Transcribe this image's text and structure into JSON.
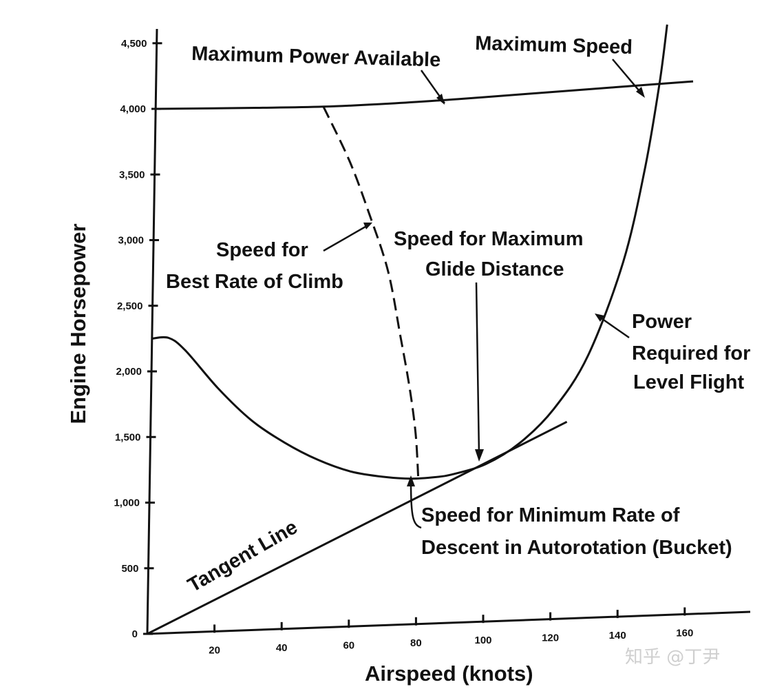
{
  "chart_data": {
    "type": "line",
    "title": "",
    "xlabel": "Airspeed (knots)",
    "ylabel": "Engine Horsepower",
    "xlim": [
      0,
      180
    ],
    "ylim": [
      0,
      4600
    ],
    "x_tick_labels": [
      "20",
      "40",
      "60",
      "80",
      "100",
      "120",
      "140",
      "160"
    ],
    "x_tick_values": [
      20,
      40,
      60,
      80,
      100,
      120,
      140,
      160
    ],
    "y_tick_labels": [
      "0",
      "500",
      "1,000",
      "1,500",
      "2,000",
      "2,500",
      "3,000",
      "3,500",
      "4,000",
      "4,500"
    ],
    "y_tick_values": [
      0,
      500,
      1000,
      1500,
      2000,
      2500,
      3000,
      3500,
      4000,
      4500
    ],
    "series": [
      {
        "name": "Maximum Power Available",
        "style": "solid",
        "x": [
          0,
          30,
          50,
          70,
          90,
          110,
          130,
          150,
          160
        ],
        "y": [
          4000,
          3980,
          3970,
          3975,
          3990,
          4010,
          4030,
          4050,
          4060
        ]
      },
      {
        "name": "Power Required for Level Flight",
        "style": "solid",
        "x": [
          0,
          5,
          10,
          20,
          30,
          40,
          50,
          60,
          70,
          78,
          85,
          90,
          100,
          110,
          120,
          130,
          140,
          146,
          150,
          152
        ],
        "y": [
          2250,
          2250,
          2150,
          1850,
          1600,
          1420,
          1280,
          1180,
          1130,
          1110,
          1115,
          1130,
          1200,
          1350,
          1600,
          2000,
          2700,
          3400,
          4050,
          4500
        ]
      },
      {
        "name": "Speed for Best Rate of Climb",
        "style": "dashed",
        "x": [
          50,
          58,
          64,
          70,
          74,
          77,
          79,
          80
        ],
        "y": [
          3970,
          3550,
          3150,
          2700,
          2200,
          1800,
          1450,
          1110
        ]
      },
      {
        "name": "Tangent Line",
        "style": "solid",
        "x": [
          0,
          124
        ],
        "y": [
          0,
          1500
        ]
      }
    ],
    "annotations": {
      "max_power": "Maximum Power Available",
      "max_speed": "Maximum Speed",
      "best_climb_1": "Speed for",
      "best_climb_2": "Best Rate of Climb",
      "max_glide_1": "Speed for Maximum",
      "max_glide_2": "Glide Distance",
      "power_req_1": "Power",
      "power_req_2": "Required for",
      "power_req_3": "Level Flight",
      "tangent": "Tangent Line",
      "bucket_1": "Speed for Minimum Rate of",
      "bucket_2": "Descent in Autorotation (Bucket)"
    },
    "watermark": "知乎 @丁尹"
  }
}
